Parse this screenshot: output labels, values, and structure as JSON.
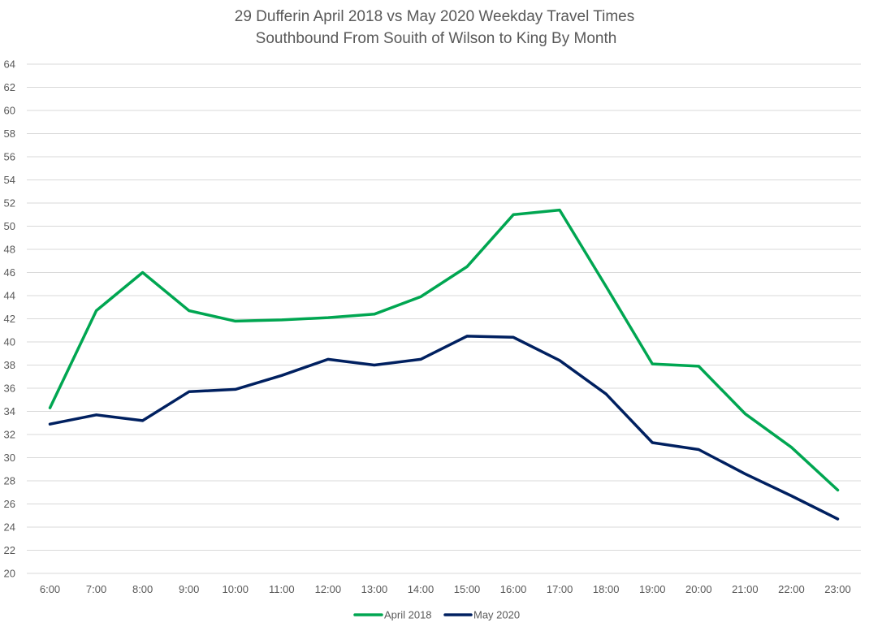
{
  "chart_data": {
    "type": "line",
    "title": "29 Dufferin April 2018 vs May 2020 Weekday Travel Times",
    "subtitle": "Southbound From Souith of Wilson to King By Month",
    "xlabel": "",
    "ylabel": "",
    "categories": [
      "6:00",
      "7:00",
      "8:00",
      "9:00",
      "10:00",
      "11:00",
      "12:00",
      "13:00",
      "14:00",
      "15:00",
      "16:00",
      "17:00",
      "18:00",
      "19:00",
      "20:00",
      "21:00",
      "22:00",
      "23:00"
    ],
    "ylim": [
      20,
      64
    ],
    "yticks": [
      20,
      22,
      24,
      26,
      28,
      30,
      32,
      34,
      36,
      38,
      40,
      42,
      44,
      46,
      48,
      50,
      52,
      54,
      56,
      58,
      60,
      62,
      64
    ],
    "grid": true,
    "legend_position": "bottom",
    "series": [
      {
        "name": "April 2018",
        "color": "#00a651",
        "values": [
          34.3,
          42.7,
          46.0,
          42.7,
          41.8,
          41.9,
          42.1,
          42.4,
          43.9,
          46.5,
          51.0,
          51.4,
          44.8,
          38.1,
          37.9,
          33.8,
          30.9,
          27.2
        ]
      },
      {
        "name": "May 2020",
        "color": "#002060",
        "values": [
          32.9,
          33.7,
          33.2,
          35.7,
          35.9,
          37.1,
          38.5,
          38.0,
          38.5,
          40.5,
          40.4,
          38.4,
          35.5,
          31.3,
          30.7,
          28.6,
          26.7,
          24.7
        ]
      }
    ]
  }
}
